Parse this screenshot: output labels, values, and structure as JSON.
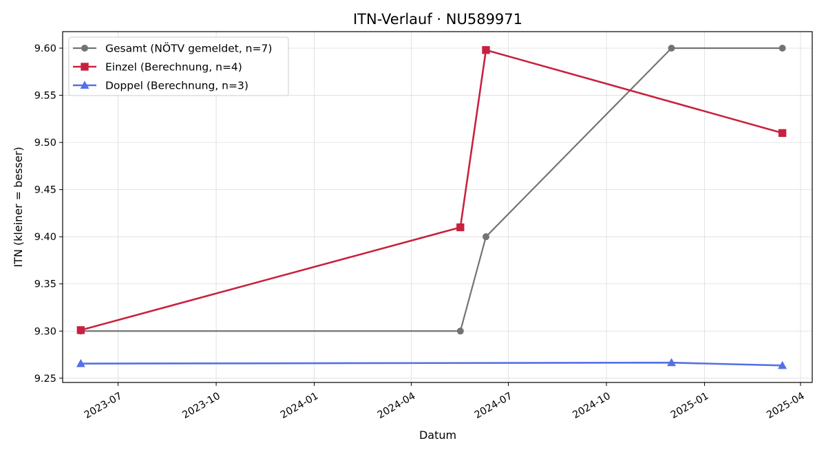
{
  "chart_data": {
    "type": "line",
    "title": "ITN-Verlauf · NU589971",
    "xlabel": "Datum",
    "ylabel": "ITN  (kleiner = besser)",
    "x_type": "date",
    "xlim": [
      "2023-05-10",
      "2025-04-12"
    ],
    "ylim": [
      9.2455,
      9.6175
    ],
    "x_ticks": [
      "2023-07-01",
      "2023-10-01",
      "2024-01-01",
      "2024-04-01",
      "2024-07-01",
      "2024-10-01",
      "2025-01-01",
      "2025-04-01"
    ],
    "x_tick_labels": [
      "2023-07",
      "2023-10",
      "2024-01",
      "2024-04",
      "2024-07",
      "2024-10",
      "2025-01",
      "2025-04"
    ],
    "y_ticks": [
      9.25,
      9.3,
      9.35,
      9.4,
      9.45,
      9.5,
      9.55,
      9.6
    ],
    "y_tick_labels": [
      "9.25",
      "9.30",
      "9.35",
      "9.40",
      "9.45",
      "9.50",
      "9.55",
      "9.60"
    ],
    "grid": true,
    "legend_position": "top-left",
    "series": [
      {
        "name": "Gesamt (NÖTV gemeldet, n=7)",
        "color": "#737373",
        "marker": "circle",
        "x": [
          "2023-05-27",
          "2024-05-17",
          "2024-06-10",
          "2024-12-01",
          "2025-03-15"
        ],
        "values": [
          9.3,
          9.3,
          9.4,
          9.6,
          9.6
        ]
      },
      {
        "name": "Einzel (Berechnung, n=4)",
        "color": "#c8213f",
        "marker": "square",
        "x": [
          "2023-05-27",
          "2024-05-17",
          "2024-06-10",
          "2025-03-15"
        ],
        "values": [
          9.301,
          9.41,
          9.598,
          9.51
        ]
      },
      {
        "name": "Doppel (Berechnung, n=3)",
        "color": "#5470e6",
        "marker": "triangle",
        "x": [
          "2023-05-27",
          "2024-12-01",
          "2025-03-15"
        ],
        "values": [
          9.2655,
          9.2665,
          9.2635
        ]
      }
    ]
  }
}
